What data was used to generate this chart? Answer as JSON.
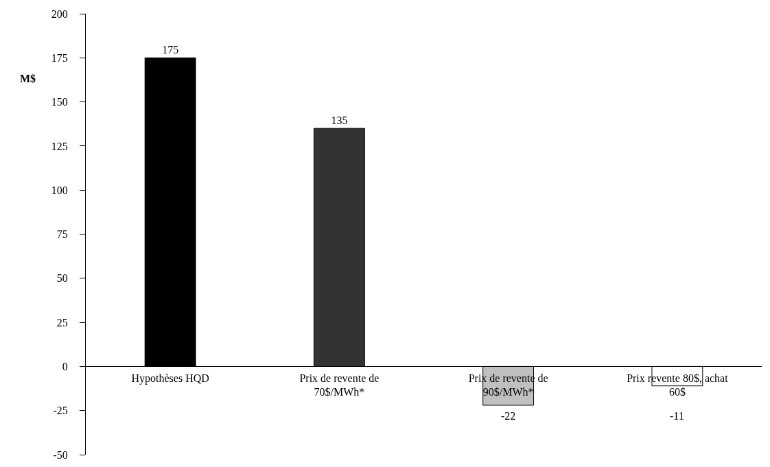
{
  "chart_data": {
    "type": "bar",
    "ylabel": "M$",
    "categories": [
      "Hypothèses HQD",
      "Prix de revente de 70$/MWh*",
      "Prix de revente de 90$/MWh*",
      "Prix revente 80$, achat 60$"
    ],
    "values": [
      175,
      135,
      -22,
      -11
    ],
    "colors": [
      "#000000",
      "#333333",
      "#c0c0c0",
      "#ffffff"
    ],
    "ylim": [
      -50,
      200
    ],
    "yticks": [
      -50,
      -25,
      0,
      25,
      50,
      75,
      100,
      125,
      150,
      175,
      200
    ],
    "data_labels": true
  }
}
